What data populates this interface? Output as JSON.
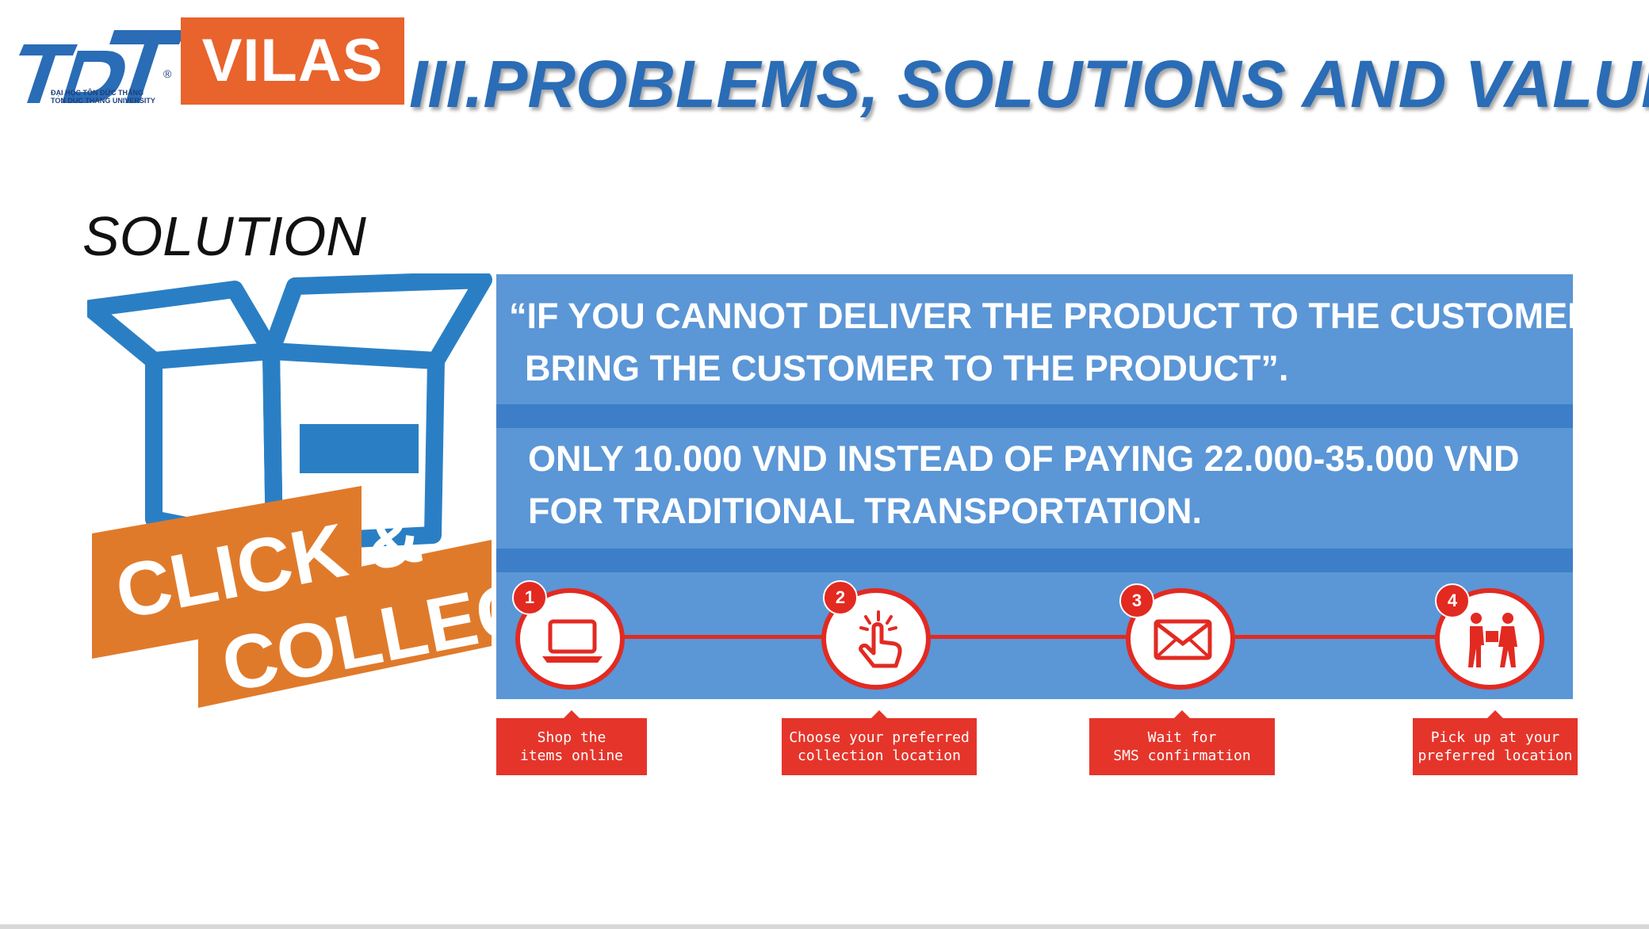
{
  "header": {
    "logo_text": "TĐT",
    "logo_caption_1": "ĐẠI HỌC TÔN ĐỨC THẮNG",
    "logo_caption_2": "TON DUC THANG UNIVERSITY",
    "vilas_label": "VILAS",
    "title": "III.PROBLEMS, SOLUTIONS AND VALUES"
  },
  "section": {
    "heading": "SOLUTION"
  },
  "illustration": {
    "line1": "CLICK &",
    "line2": "COLLECT"
  },
  "panel": {
    "quote_line1": "“IF YOU CANNOT DELIVER THE PRODUCT TO THE CUSTOMER,",
    "quote_line2": "BRING THE CUSTOMER TO THE PRODUCT”.",
    "price_line1": "ONLY 10.000 VND INSTEAD OF PAYING 22.000-35.000 VND",
    "price_line2": "FOR TRADITIONAL TRANSPORTATION."
  },
  "steps": [
    {
      "number": "1",
      "icon": "laptop-icon",
      "label_line1": "Shop the",
      "label_line2": "items online"
    },
    {
      "number": "2",
      "icon": "tap-hand-icon",
      "label_line1": "Choose your preferred",
      "label_line2": "collection location"
    },
    {
      "number": "3",
      "icon": "envelope-icon",
      "label_line1": "Wait for",
      "label_line2": "SMS confirmation"
    },
    {
      "number": "4",
      "icon": "pickup-icon",
      "label_line1": "Pick up at your",
      "label_line2": "preferred location"
    }
  ],
  "colors": {
    "accent_blue": "#2a6cb6",
    "panel_blue": "#5b96d6",
    "band_blue": "#3e7ec8",
    "orange": "#e9632c",
    "step_red": "#e22a21"
  }
}
